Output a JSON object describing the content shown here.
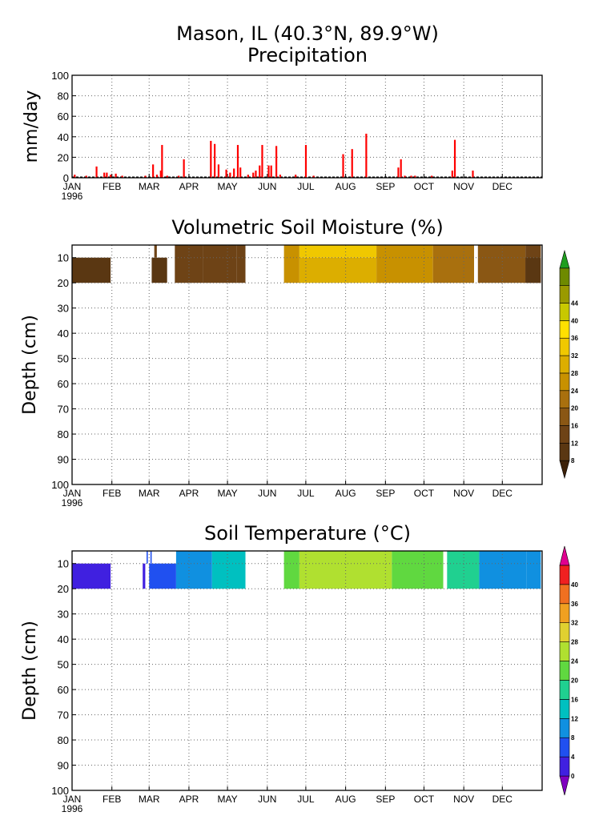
{
  "figure": {
    "title_line1": "Mason, IL   (40.3°N, 89.9°W)",
    "title_line2": "Precipitation"
  },
  "colors": {
    "precip_bar": "#ff0000",
    "moisture_levels": [
      "#3b2008",
      "#5a3712",
      "#6e4316",
      "#8a5714",
      "#a9700e",
      "#c89100",
      "#dcae00",
      "#f0c800",
      "#ffe000",
      "#c8c800",
      "#9a9a00",
      "#6e8a00",
      "#1f9e1f"
    ],
    "temp_levels": [
      "#8000c0",
      "#4020e0",
      "#2050f0",
      "#1090e0",
      "#00c0c0",
      "#20d090",
      "#60d840",
      "#b0e030",
      "#e0d030",
      "#f0a020",
      "#f07020",
      "#f02020",
      "#e00090"
    ]
  },
  "chart_data": [
    {
      "type": "bar",
      "title": "Precipitation",
      "xlabel": "",
      "ylabel": "mm/day",
      "ylim": [
        0,
        100
      ],
      "yticks": [
        "0",
        "20",
        "40",
        "60",
        "80",
        "100"
      ],
      "month_labels": [
        "JAN",
        "FEB",
        "MAR",
        "APR",
        "MAY",
        "JUN",
        "JUL",
        "AUG",
        "SEP",
        "OCT",
        "NOV",
        "DEC"
      ],
      "year_label": "1996",
      "grid": true,
      "bars": [
        {
          "day": 3,
          "value": 3
        },
        {
          "day": 12,
          "value": 2
        },
        {
          "day": 20,
          "value": 11
        },
        {
          "day": 26,
          "value": 5
        },
        {
          "day": 28,
          "value": 5
        },
        {
          "day": 31,
          "value": 3
        },
        {
          "day": 35,
          "value": 4
        },
        {
          "day": 40,
          "value": 2
        },
        {
          "day": 58,
          "value": 2
        },
        {
          "day": 64,
          "value": 13
        },
        {
          "day": 67,
          "value": 3
        },
        {
          "day": 70,
          "value": 7
        },
        {
          "day": 71,
          "value": 32
        },
        {
          "day": 75,
          "value": 2
        },
        {
          "day": 84,
          "value": 2
        },
        {
          "day": 88,
          "value": 18
        },
        {
          "day": 109,
          "value": 36
        },
        {
          "day": 112,
          "value": 33
        },
        {
          "day": 115,
          "value": 13
        },
        {
          "day": 121,
          "value": 8
        },
        {
          "day": 124,
          "value": 5
        },
        {
          "day": 127,
          "value": 9
        },
        {
          "day": 130,
          "value": 32
        },
        {
          "day": 132,
          "value": 10
        },
        {
          "day": 138,
          "value": 3
        },
        {
          "day": 142,
          "value": 5
        },
        {
          "day": 144,
          "value": 7
        },
        {
          "day": 147,
          "value": 12
        },
        {
          "day": 149,
          "value": 32
        },
        {
          "day": 154,
          "value": 12
        },
        {
          "day": 156,
          "value": 12
        },
        {
          "day": 160,
          "value": 31
        },
        {
          "day": 163,
          "value": 3
        },
        {
          "day": 175,
          "value": 3
        },
        {
          "day": 183,
          "value": 32
        },
        {
          "day": 189,
          "value": 2
        },
        {
          "day": 212,
          "value": 23
        },
        {
          "day": 219,
          "value": 28
        },
        {
          "day": 230,
          "value": 43
        },
        {
          "day": 255,
          "value": 10
        },
        {
          "day": 257,
          "value": 18
        },
        {
          "day": 260,
          "value": 2
        },
        {
          "day": 265,
          "value": 2
        },
        {
          "day": 268,
          "value": 2
        },
        {
          "day": 281,
          "value": 2
        },
        {
          "day": 297,
          "value": 7
        },
        {
          "day": 299,
          "value": 37
        },
        {
          "day": 313,
          "value": 7
        }
      ]
    },
    {
      "type": "heatmap",
      "title": "Volumetric Soil Moisture (%)",
      "xlabel": "",
      "ylabel": "Depth (cm)",
      "ylim": [
        100,
        5
      ],
      "yticks": [
        "10",
        "20",
        "30",
        "40",
        "50",
        "60",
        "70",
        "80",
        "90",
        "100"
      ],
      "month_labels": [
        "JAN",
        "FEB",
        "MAR",
        "APR",
        "MAY",
        "JUN",
        "JUL",
        "AUG",
        "SEP",
        "OCT",
        "NOV",
        "DEC"
      ],
      "year_label": "1996",
      "grid": true,
      "colorbar_ticks": [
        "8",
        "12",
        "16",
        "20",
        "24",
        "28",
        "32",
        "36",
        "40",
        "44"
      ],
      "layers": [
        {
          "from_day": 1,
          "to_day": 31,
          "top_cm": 10,
          "bottom_cm": 20,
          "value": 6
        },
        {
          "from_day": 63,
          "to_day": 75,
          "top_cm": 10,
          "bottom_cm": 20,
          "value": 7
        },
        {
          "from_day": 65,
          "to_day": 67,
          "top_cm": 5,
          "bottom_cm": 10,
          "value": 9
        },
        {
          "from_day": 81,
          "to_day": 103,
          "top_cm": 5,
          "bottom_cm": 20,
          "value": 8
        },
        {
          "from_day": 103,
          "to_day": 129,
          "top_cm": 5,
          "bottom_cm": 20,
          "value": 10
        },
        {
          "from_day": 129,
          "to_day": 136,
          "top_cm": 5,
          "bottom_cm": 20,
          "value": 11
        },
        {
          "from_day": 166,
          "to_day": 178,
          "top_cm": 5,
          "bottom_cm": 20,
          "value": 22
        },
        {
          "from_day": 178,
          "to_day": 238,
          "top_cm": 5,
          "bottom_cm": 10,
          "value": 28
        },
        {
          "from_day": 178,
          "to_day": 238,
          "top_cm": 10,
          "bottom_cm": 20,
          "value": 25
        },
        {
          "from_day": 238,
          "to_day": 282,
          "top_cm": 5,
          "bottom_cm": 20,
          "value": 22
        },
        {
          "from_day": 282,
          "to_day": 314,
          "top_cm": 5,
          "bottom_cm": 20,
          "value": 18
        },
        {
          "from_day": 317,
          "to_day": 354,
          "top_cm": 5,
          "bottom_cm": 20,
          "value": 12
        },
        {
          "from_day": 354,
          "to_day": 366,
          "top_cm": 5,
          "bottom_cm": 20,
          "value": 9
        },
        {
          "from_day": 354,
          "to_day": 366,
          "top_cm": 10,
          "bottom_cm": 20,
          "value": 7
        }
      ]
    },
    {
      "type": "heatmap",
      "title": "Soil Temperature (°C)",
      "xlabel": "",
      "ylabel": "Depth (cm)",
      "ylim": [
        100,
        5
      ],
      "yticks": [
        "10",
        "20",
        "30",
        "40",
        "50",
        "60",
        "70",
        "80",
        "90",
        "100"
      ],
      "month_labels": [
        "JAN",
        "FEB",
        "MAR",
        "APR",
        "MAY",
        "JUN",
        "JUL",
        "AUG",
        "SEP",
        "OCT",
        "NOV",
        "DEC"
      ],
      "year_label": "1996",
      "grid": true,
      "colorbar_ticks": [
        "0",
        "4",
        "8",
        "12",
        "16",
        "20",
        "24",
        "28",
        "32",
        "36",
        "40"
      ],
      "layers": [
        {
          "from_day": 1,
          "to_day": 31,
          "top_cm": 10,
          "bottom_cm": 20,
          "value": -1
        },
        {
          "from_day": 56,
          "to_day": 58,
          "top_cm": 10,
          "bottom_cm": 20,
          "value": -1
        },
        {
          "from_day": 59,
          "to_day": 60,
          "top_cm": 5,
          "bottom_cm": 10,
          "value": 2
        },
        {
          "from_day": 62,
          "to_day": 63,
          "top_cm": 5,
          "bottom_cm": 10,
          "value": 2
        },
        {
          "from_day": 61,
          "to_day": 82,
          "top_cm": 10,
          "bottom_cm": 20,
          "value": 1
        },
        {
          "from_day": 82,
          "to_day": 110,
          "top_cm": 5,
          "bottom_cm": 20,
          "value": 4
        },
        {
          "from_day": 110,
          "to_day": 136,
          "top_cm": 5,
          "bottom_cm": 20,
          "value": 9
        },
        {
          "from_day": 166,
          "to_day": 178,
          "top_cm": 5,
          "bottom_cm": 20,
          "value": 18
        },
        {
          "from_day": 178,
          "to_day": 250,
          "top_cm": 5,
          "bottom_cm": 20,
          "value": 23
        },
        {
          "from_day": 250,
          "to_day": 290,
          "top_cm": 5,
          "bottom_cm": 20,
          "value": 19
        },
        {
          "from_day": 293,
          "to_day": 318,
          "top_cm": 5,
          "bottom_cm": 20,
          "value": 13
        },
        {
          "from_day": 318,
          "to_day": 355,
          "top_cm": 5,
          "bottom_cm": 20,
          "value": 6
        },
        {
          "from_day": 355,
          "to_day": 366,
          "top_cm": 5,
          "bottom_cm": 20,
          "value": 4
        }
      ]
    }
  ]
}
